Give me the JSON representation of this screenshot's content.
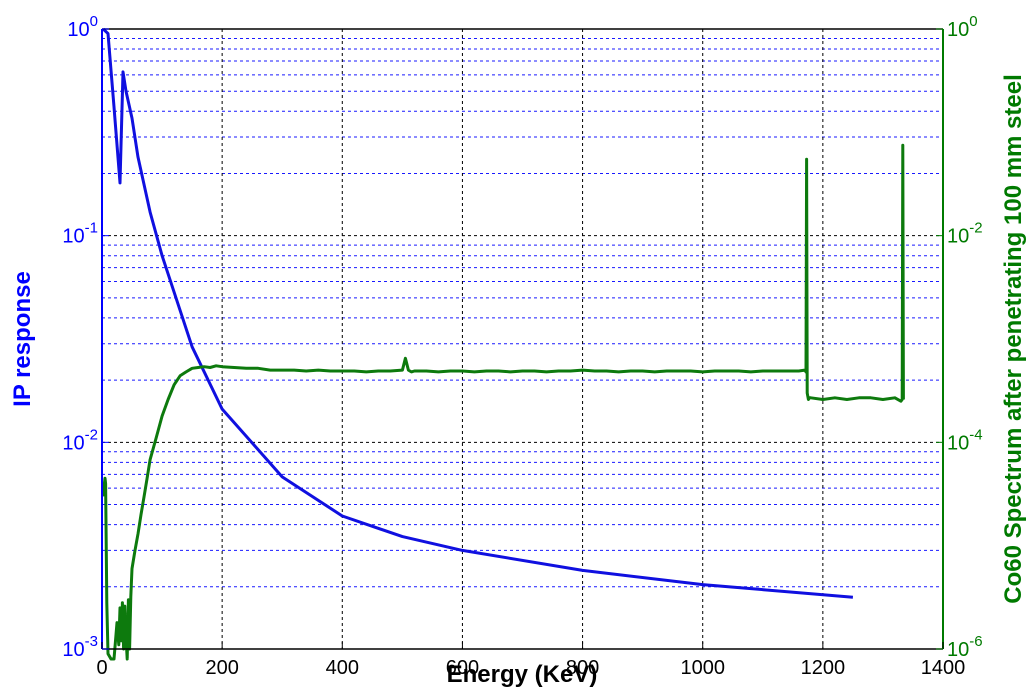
{
  "chart_data": {
    "type": "line",
    "title": "",
    "xlabel": "Energy (KeV)",
    "ylabel_left": "IP response",
    "ylabel_right": "Co60 Spectrum after penetrating 100 mm steel",
    "xlim": [
      0,
      1400
    ],
    "ylim_left": [
      0.001,
      1
    ],
    "ylim_right": [
      1e-06,
      1
    ],
    "yscale_left": "log",
    "yscale_right": "log",
    "grid": true,
    "x_ticks": [
      0,
      200,
      400,
      600,
      800,
      1000,
      1200,
      1400
    ],
    "x_tick_labels": [
      "0",
      "200",
      "400",
      "600",
      "800",
      "1000",
      "1200",
      "1400"
    ],
    "y_left_ticks": [
      {
        "value": 0.001,
        "base": "10",
        "exp": "-3"
      },
      {
        "value": 0.01,
        "base": "10",
        "exp": "-2"
      },
      {
        "value": 0.1,
        "base": "10",
        "exp": "-1"
      },
      {
        "value": 1,
        "base": "10",
        "exp": "0"
      }
    ],
    "y_right_ticks": [
      {
        "value": 1e-06,
        "base": "10",
        "exp": "-6"
      },
      {
        "value": 0.0001,
        "base": "10",
        "exp": "-4"
      },
      {
        "value": 0.01,
        "base": "10",
        "exp": "-2"
      },
      {
        "value": 1,
        "base": "10",
        "exp": "0"
      }
    ],
    "colors": {
      "left_axis": "#0000ff",
      "right_axis": "#007a00",
      "grid_major": "#000000",
      "grid_minor": "#1a1aff"
    },
    "series": [
      {
        "axis": "left",
        "color": "#1010e0",
        "x": [
          2,
          10,
          20,
          30,
          35,
          40,
          50,
          60,
          80,
          100,
          150,
          200,
          300,
          400,
          500,
          600,
          800,
          1000,
          1250
        ],
        "y": [
          1.0,
          0.95,
          0.42,
          0.18,
          0.62,
          0.5,
          0.37,
          0.24,
          0.13,
          0.08,
          0.029,
          0.0145,
          0.0068,
          0.0044,
          0.0035,
          0.003,
          0.0024,
          0.00205,
          0.00178
        ]
      },
      {
        "axis": "right",
        "color": "#0d7a0d",
        "x": [
          3,
          4,
          5,
          6,
          8,
          10,
          15,
          20,
          25,
          28,
          30,
          32,
          34,
          36,
          38,
          40,
          42,
          44,
          46,
          48,
          50,
          55,
          60,
          65,
          70,
          75,
          80,
          90,
          100,
          110,
          120,
          130,
          140,
          150,
          160,
          170,
          180,
          190,
          200,
          220,
          240,
          260,
          280,
          300,
          320,
          340,
          360,
          380,
          400,
          420,
          440,
          460,
          480,
          500,
          505,
          510,
          515,
          520,
          540,
          560,
          580,
          600,
          620,
          640,
          660,
          680,
          700,
          720,
          740,
          760,
          780,
          800,
          820,
          840,
          860,
          880,
          900,
          920,
          940,
          960,
          980,
          1000,
          1020,
          1040,
          1060,
          1080,
          1100,
          1120,
          1140,
          1160,
          1170,
          1172,
          1173,
          1174,
          1176,
          1178,
          1180,
          1200,
          1220,
          1240,
          1260,
          1280,
          1300,
          1320,
          1330,
          1332,
          1333,
          1334
        ],
        "y": [
          3e-05,
          4e-05,
          4.5e-05,
          4e-05,
          2.8e-06,
          9e-07,
          8e-07,
          8e-07,
          1.8e-06,
          1.1e-06,
          2.5e-06,
          1.2e-06,
          2.8e-06,
          1e-06,
          2.6e-06,
          1.3e-06,
          8e-07,
          3e-06,
          1e-06,
          3.2e-06,
          6e-06,
          9e-06,
          1.3e-05,
          2e-05,
          3e-05,
          4.5e-05,
          6.8e-05,
          0.00011,
          0.00018,
          0.00026,
          0.00036,
          0.00044,
          0.00048,
          0.00052,
          0.00053,
          0.00054,
          0.00053,
          0.00055,
          0.00054,
          0.00053,
          0.00052,
          0.00052,
          0.0005,
          0.0005,
          0.0005,
          0.00049,
          0.0005,
          0.00049,
          0.00049,
          0.00049,
          0.00048,
          0.00049,
          0.00049,
          0.0005,
          0.00065,
          0.0005,
          0.00048,
          0.00049,
          0.00049,
          0.00048,
          0.00049,
          0.00049,
          0.00048,
          0.00049,
          0.00049,
          0.00048,
          0.00049,
          0.00049,
          0.00048,
          0.00049,
          0.00049,
          0.0005,
          0.00049,
          0.00049,
          0.00048,
          0.00049,
          0.00049,
          0.00048,
          0.00049,
          0.00049,
          0.00049,
          0.00048,
          0.00049,
          0.00049,
          0.00049,
          0.00048,
          0.00049,
          0.00049,
          0.00049,
          0.00049,
          0.0005,
          0.00048,
          0.055,
          0.0003,
          0.00026,
          0.00027,
          0.00027,
          0.00026,
          0.00027,
          0.00026,
          0.00027,
          0.00027,
          0.00026,
          0.00027,
          0.00025,
          0.00026,
          0.075,
          0.00026
        ]
      }
    ]
  }
}
